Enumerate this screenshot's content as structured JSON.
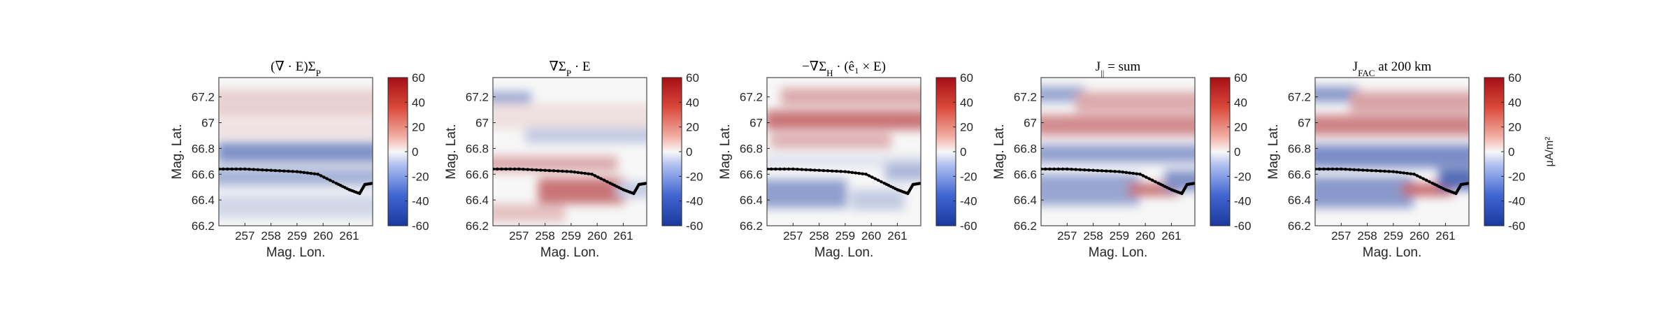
{
  "chart_data": [
    {
      "type": "heatmap",
      "title": "(∇ · E)Σ",
      "title_sub": "P",
      "title_suffix": "",
      "xlabel": "Mag. Lon.",
      "ylabel": "Mag. Lat.",
      "xticks": [
        "257",
        "258",
        "259",
        "260",
        "261"
      ],
      "yticks": [
        "67.2",
        "67",
        "66.8",
        "66.6",
        "66.4",
        "66.2"
      ],
      "xlim": [
        256.0,
        261.9
      ],
      "ylim": [
        66.2,
        67.35
      ],
      "colorbar": {
        "ticks": [
          "60",
          "40",
          "20",
          "0",
          "-20",
          "-40",
          "-60"
        ],
        "clim": [
          -60,
          60
        ],
        "label": ""
      },
      "boundary": [
        [
          256.0,
          66.64
        ],
        [
          257.0,
          66.64
        ],
        [
          258.0,
          66.63
        ],
        [
          259.0,
          66.62
        ],
        [
          259.8,
          66.6
        ],
        [
          260.5,
          66.53
        ],
        [
          261.0,
          66.48
        ],
        [
          261.4,
          66.45
        ],
        [
          261.6,
          66.52
        ],
        [
          261.9,
          66.53
        ]
      ]
    },
    {
      "type": "heatmap",
      "title": "∇Σ",
      "title_sub": "P",
      "title_suffix": " · E",
      "xlabel": "Mag. Lon.",
      "ylabel": "Mag. Lat.",
      "xticks": [
        "257",
        "258",
        "259",
        "260",
        "261"
      ],
      "yticks": [
        "67.2",
        "67",
        "66.8",
        "66.6",
        "66.4",
        "66.2"
      ],
      "xlim": [
        256.0,
        261.9
      ],
      "ylim": [
        66.2,
        67.35
      ],
      "colorbar": {
        "ticks": [
          "60",
          "40",
          "20",
          "0",
          "-20",
          "-40",
          "-60"
        ],
        "clim": [
          -60,
          60
        ],
        "label": ""
      },
      "boundary": [
        [
          256.0,
          66.64
        ],
        [
          257.0,
          66.64
        ],
        [
          258.0,
          66.63
        ],
        [
          259.0,
          66.62
        ],
        [
          259.8,
          66.6
        ],
        [
          260.5,
          66.53
        ],
        [
          261.0,
          66.48
        ],
        [
          261.4,
          66.45
        ],
        [
          261.6,
          66.52
        ],
        [
          261.9,
          66.53
        ]
      ]
    },
    {
      "type": "heatmap",
      "title": "−∇Σ",
      "title_sub": "H",
      "title_suffix": " · (ê₁ × E)",
      "xlabel": "Mag. Lon.",
      "ylabel": "Mag. Lat.",
      "xticks": [
        "257",
        "258",
        "259",
        "260",
        "261"
      ],
      "yticks": [
        "67.2",
        "67",
        "66.8",
        "66.6",
        "66.4",
        "66.2"
      ],
      "xlim": [
        256.0,
        261.9
      ],
      "ylim": [
        66.2,
        67.35
      ],
      "colorbar": {
        "ticks": [
          "60",
          "40",
          "20",
          "0",
          "-20",
          "-40",
          "-60"
        ],
        "clim": [
          -60,
          60
        ],
        "label": ""
      },
      "boundary": [
        [
          256.0,
          66.64
        ],
        [
          257.0,
          66.64
        ],
        [
          258.0,
          66.63
        ],
        [
          259.0,
          66.62
        ],
        [
          259.8,
          66.6
        ],
        [
          260.5,
          66.53
        ],
        [
          261.0,
          66.48
        ],
        [
          261.4,
          66.45
        ],
        [
          261.6,
          66.52
        ],
        [
          261.9,
          66.53
        ]
      ]
    },
    {
      "type": "heatmap",
      "title": "J",
      "title_sub": "||",
      "title_suffix": " = sum",
      "xlabel": "Mag. Lon.",
      "ylabel": "Mag. Lat.",
      "xticks": [
        "257",
        "258",
        "259",
        "260",
        "261"
      ],
      "yticks": [
        "67.2",
        "67",
        "66.8",
        "66.6",
        "66.4",
        "66.2"
      ],
      "xlim": [
        256.0,
        261.9
      ],
      "ylim": [
        66.2,
        67.35
      ],
      "colorbar": {
        "ticks": [
          "60",
          "40",
          "20",
          "0",
          "-20",
          "-40",
          "-60"
        ],
        "clim": [
          -60,
          60
        ],
        "label": ""
      },
      "boundary": [
        [
          256.0,
          66.64
        ],
        [
          257.0,
          66.64
        ],
        [
          258.0,
          66.63
        ],
        [
          259.0,
          66.62
        ],
        [
          259.8,
          66.6
        ],
        [
          260.5,
          66.53
        ],
        [
          261.0,
          66.48
        ],
        [
          261.4,
          66.45
        ],
        [
          261.6,
          66.52
        ],
        [
          261.9,
          66.53
        ]
      ]
    },
    {
      "type": "heatmap",
      "title": "J",
      "title_sub": "FAC",
      "title_suffix": " at 200 km",
      "xlabel": "Mag. Lon.",
      "ylabel": "Mag. Lat.",
      "xticks": [
        "257",
        "258",
        "259",
        "260",
        "261"
      ],
      "yticks": [
        "67.2",
        "67",
        "66.8",
        "66.6",
        "66.4",
        "66.2"
      ],
      "xlim": [
        256.0,
        261.9
      ],
      "ylim": [
        66.2,
        67.35
      ],
      "colorbar": {
        "ticks": [
          "60",
          "40",
          "20",
          "0",
          "-20",
          "-40",
          "-60"
        ],
        "clim": [
          -60,
          60
        ],
        "label": "μA/m²"
      },
      "boundary": [
        [
          256.0,
          66.64
        ],
        [
          257.0,
          66.64
        ],
        [
          258.0,
          66.63
        ],
        [
          259.0,
          66.62
        ],
        [
          259.8,
          66.6
        ],
        [
          260.5,
          66.53
        ],
        [
          261.0,
          66.48
        ],
        [
          261.4,
          66.45
        ],
        [
          261.6,
          66.52
        ],
        [
          261.9,
          66.53
        ]
      ]
    }
  ],
  "colors": {
    "diverging_low": "#1a3a9e",
    "diverging_mid": "#f7f7f7",
    "diverging_high": "#a50f15",
    "boundary_marker": "#000000"
  }
}
